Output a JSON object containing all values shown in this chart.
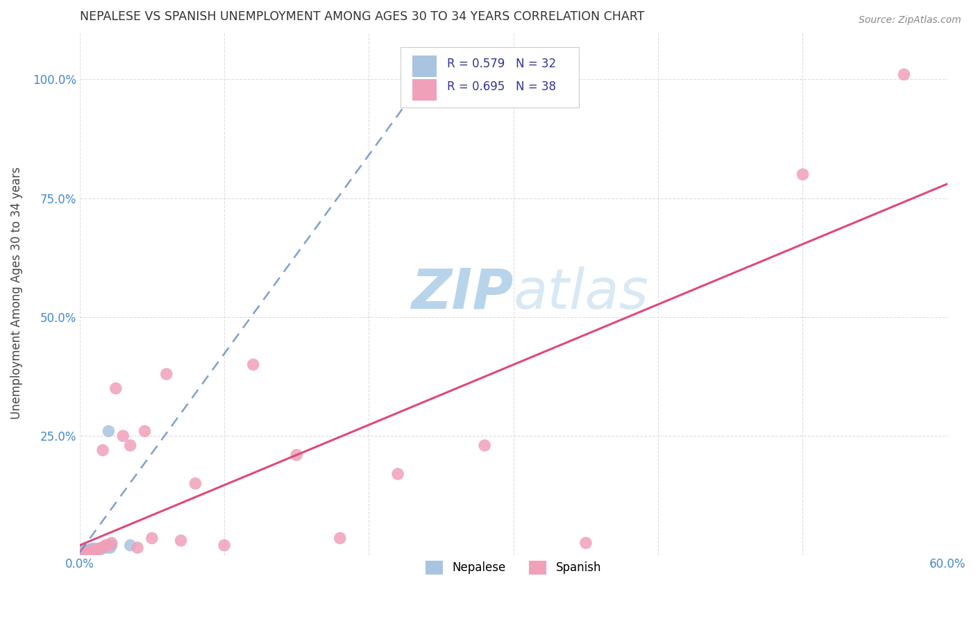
{
  "title": "NEPALESE VS SPANISH UNEMPLOYMENT AMONG AGES 30 TO 34 YEARS CORRELATION CHART",
  "source": "Source: ZipAtlas.com",
  "ylabel": "Unemployment Among Ages 30 to 34 years",
  "xlim": [
    0.0,
    0.6
  ],
  "ylim": [
    0.0,
    1.1
  ],
  "xtick_positions": [
    0.0,
    0.1,
    0.2,
    0.3,
    0.4,
    0.5,
    0.6
  ],
  "xticklabels": [
    "0.0%",
    "",
    "",
    "",
    "",
    "",
    "60.0%"
  ],
  "ytick_positions": [
    0.0,
    0.25,
    0.5,
    0.75,
    1.0
  ],
  "yticklabels": [
    "",
    "25.0%",
    "50.0%",
    "75.0%",
    "100.0%"
  ],
  "nepalese_R": 0.579,
  "nepalese_N": 32,
  "spanish_R": 0.695,
  "spanish_N": 38,
  "nepalese_color": "#a8c4e0",
  "nepalese_line_color": "#5080c0",
  "spanish_color": "#f0a0b8",
  "spanish_line_color": "#e04878",
  "nepalese_x": [
    0.0,
    0.0,
    0.0,
    0.0,
    0.0,
    0.0,
    0.0,
    0.0,
    0.003,
    0.003,
    0.003,
    0.004,
    0.005,
    0.005,
    0.006,
    0.007,
    0.008,
    0.008,
    0.009,
    0.01,
    0.01,
    0.012,
    0.013,
    0.014,
    0.015,
    0.016,
    0.018,
    0.019,
    0.02,
    0.021,
    0.022,
    0.035
  ],
  "nepalese_y": [
    0.0,
    0.0,
    0.0,
    0.003,
    0.003,
    0.005,
    0.005,
    0.007,
    0.005,
    0.008,
    0.01,
    0.008,
    0.005,
    0.01,
    0.008,
    0.01,
    0.01,
    0.012,
    0.012,
    0.01,
    0.013,
    0.012,
    0.013,
    0.012,
    0.013,
    0.015,
    0.015,
    0.018,
    0.26,
    0.015,
    0.02,
    0.02
  ],
  "spanish_x": [
    0.0,
    0.0,
    0.002,
    0.003,
    0.004,
    0.005,
    0.006,
    0.007,
    0.008,
    0.009,
    0.01,
    0.011,
    0.012,
    0.013,
    0.014,
    0.015,
    0.016,
    0.018,
    0.02,
    0.022,
    0.025,
    0.03,
    0.035,
    0.04,
    0.045,
    0.05,
    0.06,
    0.07,
    0.08,
    0.1,
    0.12,
    0.15,
    0.18,
    0.22,
    0.28,
    0.35,
    0.5,
    0.57
  ],
  "spanish_y": [
    0.0,
    0.003,
    0.003,
    0.005,
    0.004,
    0.006,
    0.005,
    0.008,
    0.006,
    0.008,
    0.008,
    0.01,
    0.01,
    0.012,
    0.013,
    0.015,
    0.22,
    0.02,
    0.02,
    0.025,
    0.35,
    0.25,
    0.23,
    0.015,
    0.26,
    0.035,
    0.38,
    0.03,
    0.15,
    0.02,
    0.4,
    0.21,
    0.035,
    0.17,
    0.23,
    0.025,
    0.8,
    1.01
  ],
  "nep_line_x": [
    0.0,
    0.25
  ],
  "nep_line_y": [
    0.005,
    1.05
  ],
  "sp_line_x": [
    0.0,
    0.6
  ],
  "sp_line_y": [
    0.02,
    0.78
  ],
  "watermark_text": "ZIPatlas",
  "watermark_color": "#c8dff0",
  "background_color": "#ffffff",
  "grid_color": "#dddddd"
}
